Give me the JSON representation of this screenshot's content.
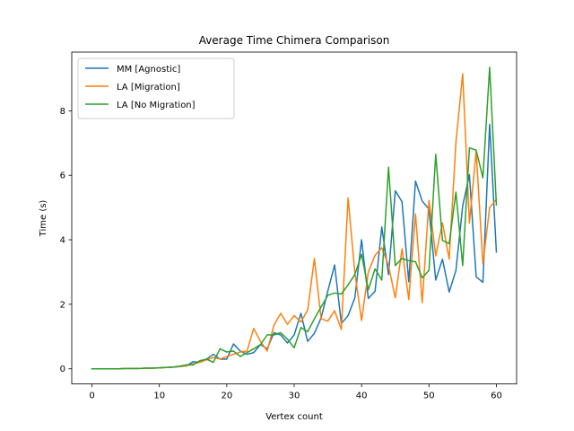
{
  "chart_data": {
    "type": "line",
    "title": "Average Time Chimera Comparison",
    "xlabel": "Vertex count",
    "ylabel": "Time (s)",
    "xlim": [
      -3,
      63
    ],
    "ylim": [
      -0.47,
      9.82
    ],
    "xticks": [
      0,
      10,
      20,
      30,
      40,
      50,
      60
    ],
    "yticks": [
      0,
      2,
      4,
      6,
      8
    ],
    "grid": false,
    "legend_position": "top-left",
    "x": [
      0,
      1,
      2,
      3,
      4,
      5,
      6,
      7,
      8,
      9,
      10,
      11,
      12,
      13,
      14,
      15,
      16,
      17,
      18,
      19,
      20,
      21,
      22,
      23,
      24,
      25,
      26,
      27,
      28,
      29,
      30,
      31,
      32,
      33,
      34,
      35,
      36,
      37,
      38,
      39,
      40,
      41,
      42,
      43,
      44,
      45,
      46,
      47,
      48,
      49,
      50,
      51,
      52,
      53,
      54,
      55,
      56,
      57,
      58,
      59,
      60
    ],
    "series": [
      {
        "name": "MM [Agnostic]",
        "color": "#1f77b4",
        "values": [
          0.0,
          0.0,
          0.0,
          0.0,
          0.0,
          0.01,
          0.01,
          0.01,
          0.02,
          0.02,
          0.03,
          0.04,
          0.05,
          0.07,
          0.09,
          0.22,
          0.2,
          0.3,
          0.45,
          0.3,
          0.3,
          0.77,
          0.55,
          0.45,
          0.5,
          0.75,
          0.62,
          1.12,
          1.05,
          0.8,
          1.05,
          1.72,
          0.85,
          1.1,
          1.58,
          2.42,
          3.22,
          1.4,
          1.65,
          2.2,
          4.0,
          2.18,
          2.4,
          4.4,
          2.92,
          5.52,
          5.18,
          2.7,
          5.82,
          5.2,
          4.95,
          2.75,
          3.4,
          2.38,
          3.05,
          5.05,
          6.02,
          2.85,
          2.68,
          7.58,
          3.62
        ]
      },
      {
        "name": "LA [Migration]",
        "color": "#ff7f0e",
        "values": [
          0.0,
          0.0,
          0.0,
          0.0,
          0.0,
          0.01,
          0.01,
          0.01,
          0.02,
          0.02,
          0.03,
          0.04,
          0.05,
          0.07,
          0.09,
          0.15,
          0.2,
          0.28,
          0.35,
          0.3,
          0.38,
          0.45,
          0.52,
          0.55,
          1.25,
          0.85,
          0.55,
          1.35,
          1.72,
          1.38,
          1.65,
          1.45,
          1.82,
          3.42,
          1.55,
          1.48,
          1.8,
          1.22,
          5.3,
          2.98,
          1.5,
          3.0,
          3.52,
          3.75,
          3.2,
          2.2,
          3.72,
          2.15,
          4.8,
          2.05,
          5.22,
          3.5,
          4.52,
          3.4,
          7.02,
          9.15,
          4.52,
          6.75,
          3.25,
          5.0,
          5.25
        ]
      },
      {
        "name": "LA [No Migration]",
        "color": "#2ca02c",
        "values": [
          0.0,
          0.0,
          0.0,
          0.0,
          0.0,
          0.01,
          0.01,
          0.01,
          0.02,
          0.02,
          0.03,
          0.04,
          0.05,
          0.08,
          0.12,
          0.12,
          0.25,
          0.3,
          0.2,
          0.62,
          0.52,
          0.55,
          0.38,
          0.5,
          0.62,
          0.75,
          1.05,
          1.05,
          1.12,
          0.92,
          0.65,
          1.28,
          1.15,
          1.55,
          1.92,
          2.28,
          2.35,
          2.32,
          2.6,
          2.92,
          3.55,
          2.45,
          3.1,
          2.75,
          6.25,
          3.2,
          3.42,
          3.35,
          3.32,
          2.82,
          3.05,
          6.65,
          3.98,
          3.88,
          5.48,
          3.2,
          6.85,
          6.78,
          5.92,
          9.35,
          5.08
        ]
      }
    ]
  }
}
